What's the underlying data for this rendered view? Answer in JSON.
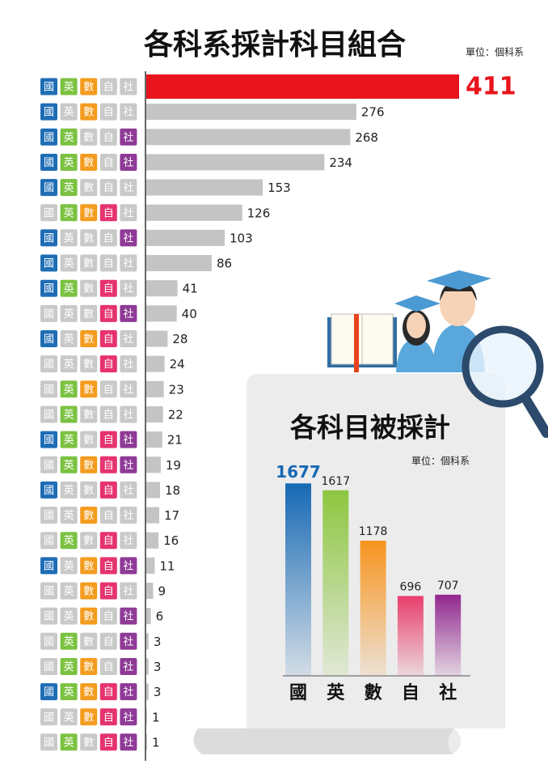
{
  "chart_data": [
    {
      "type": "bar",
      "orientation": "horizontal",
      "title": "各科系採計科目組合",
      "unit": "單位：個科系",
      "subjects": [
        "國",
        "英",
        "數",
        "自",
        "社"
      ],
      "colors": [
        "#1f6db5",
        "#7cc242",
        "#f39c1f",
        "#e6336f",
        "#8e3a96"
      ],
      "inactive_color": "#c9c9c9",
      "combinations": [
        [
          true,
          true,
          true,
          false,
          false
        ],
        [
          true,
          false,
          true,
          false,
          false
        ],
        [
          true,
          true,
          false,
          false,
          true
        ],
        [
          true,
          true,
          true,
          false,
          true
        ],
        [
          true,
          true,
          false,
          false,
          false
        ],
        [
          false,
          true,
          true,
          true,
          false
        ],
        [
          true,
          false,
          false,
          false,
          true
        ],
        [
          true,
          false,
          false,
          false,
          false
        ],
        [
          true,
          true,
          false,
          true,
          false
        ],
        [
          false,
          false,
          false,
          true,
          true
        ],
        [
          true,
          false,
          true,
          true,
          false
        ],
        [
          false,
          false,
          false,
          true,
          false
        ],
        [
          false,
          true,
          true,
          false,
          false
        ],
        [
          false,
          true,
          false,
          false,
          false
        ],
        [
          true,
          true,
          false,
          true,
          true
        ],
        [
          false,
          true,
          true,
          true,
          true
        ],
        [
          true,
          false,
          false,
          true,
          false
        ],
        [
          false,
          false,
          true,
          false,
          false
        ],
        [
          false,
          true,
          false,
          true,
          false
        ],
        [
          true,
          false,
          true,
          true,
          true
        ],
        [
          false,
          false,
          true,
          true,
          false
        ],
        [
          false,
          false,
          true,
          false,
          true
        ],
        [
          false,
          true,
          false,
          false,
          true
        ],
        [
          false,
          true,
          true,
          false,
          true
        ],
        [
          true,
          true,
          true,
          true,
          true
        ],
        [
          false,
          false,
          true,
          true,
          true
        ],
        [
          false,
          true,
          false,
          true,
          true
        ]
      ],
      "values": [
        411,
        276,
        268,
        234,
        153,
        126,
        103,
        86,
        41,
        40,
        28,
        24,
        23,
        22,
        21,
        19,
        18,
        17,
        16,
        11,
        9,
        6,
        3,
        3,
        3,
        1,
        1
      ],
      "color": "#c4c4c4",
      "highlight_color": "#e8141c",
      "xlim": [
        0,
        411
      ]
    },
    {
      "type": "bar",
      "orientation": "vertical",
      "title": "各科目被採計",
      "unit": "單位：個科系",
      "categories": [
        "國",
        "英",
        "數",
        "自",
        "社"
      ],
      "values": [
        1677,
        1617,
        1178,
        696,
        707
      ],
      "colors": [
        "#1769b5",
        "#8dc63f",
        "#f7941d",
        "#e83e6c",
        "#92278f"
      ],
      "ylim": [
        0,
        1700
      ]
    }
  ]
}
